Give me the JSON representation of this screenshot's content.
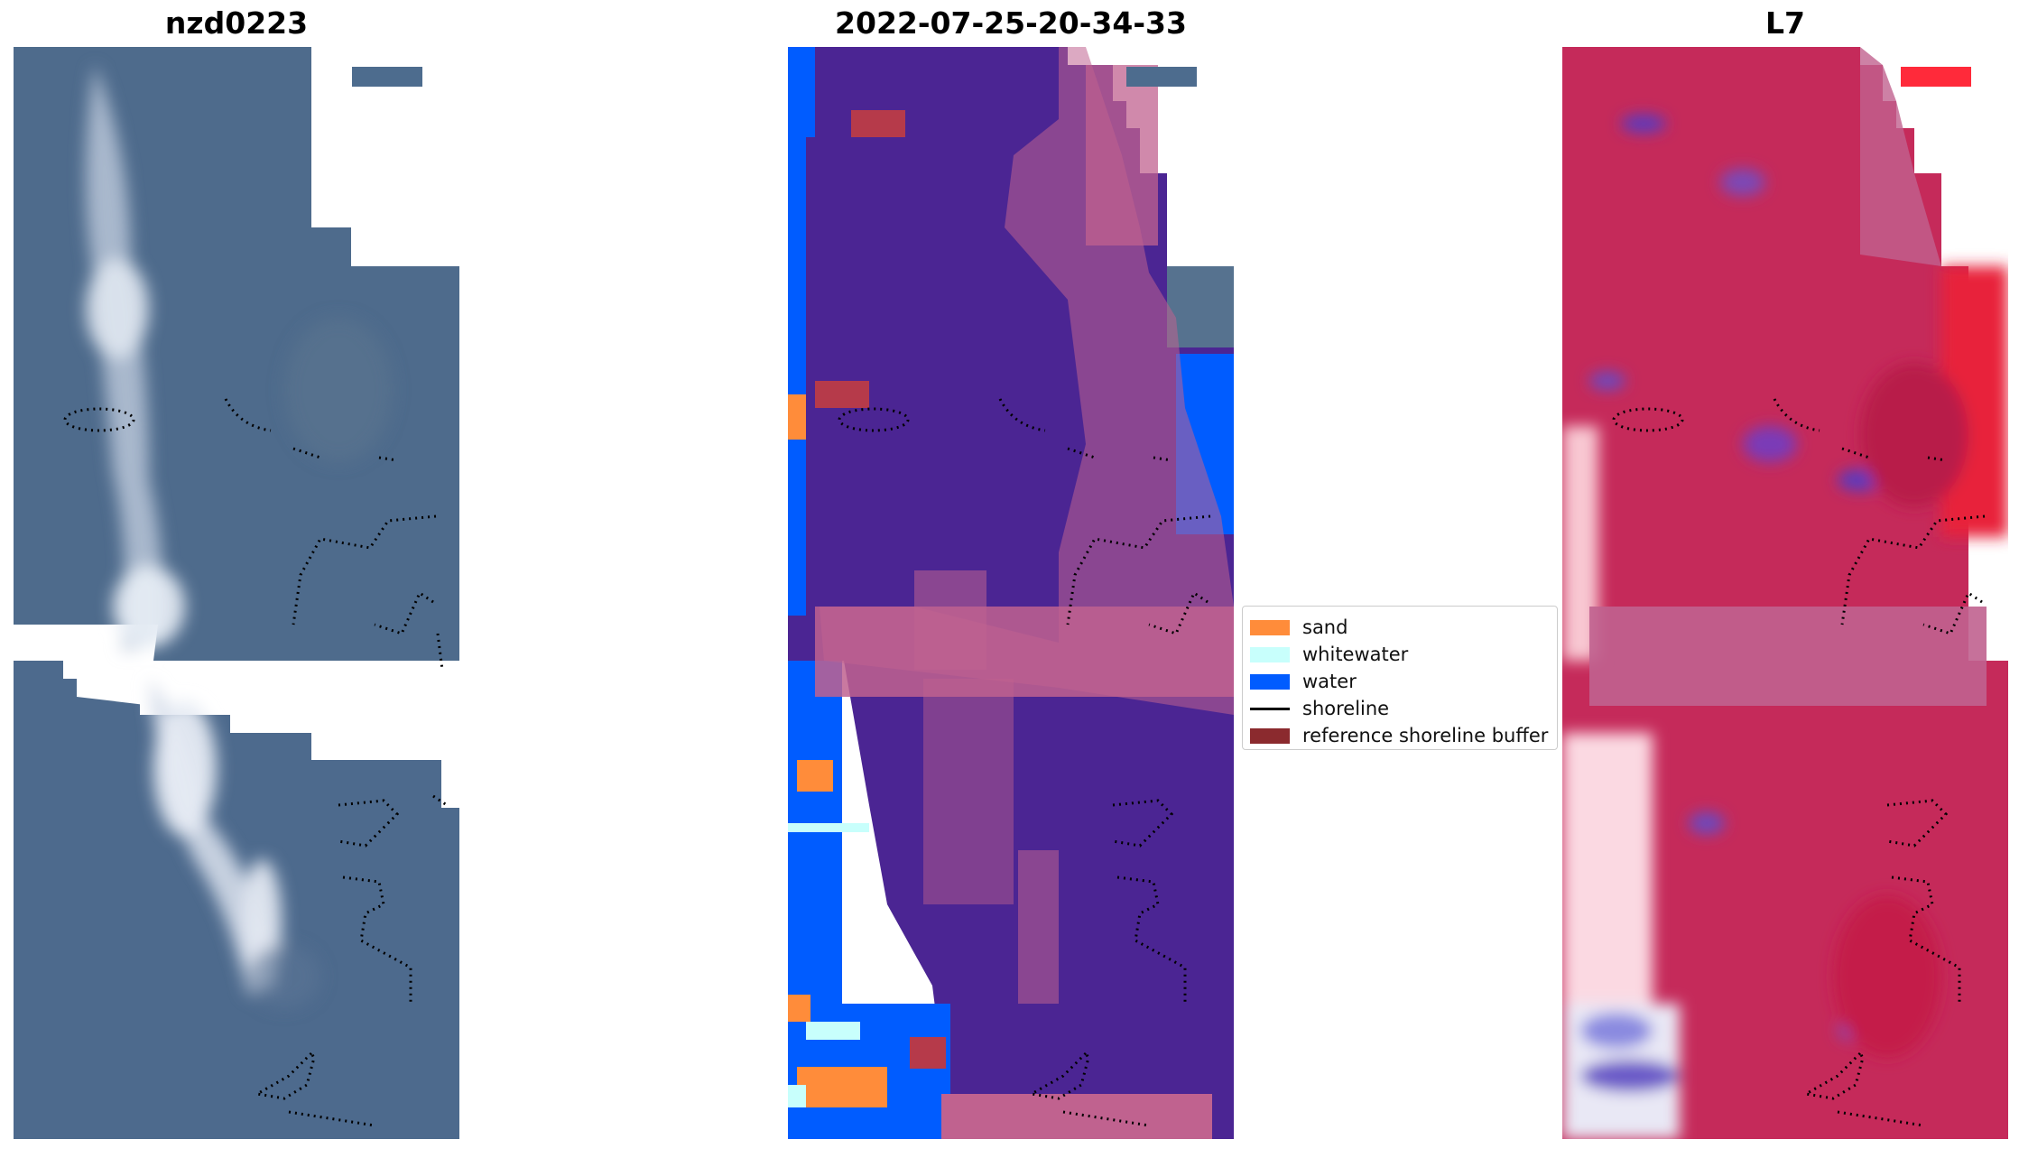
{
  "panels": [
    {
      "title": "nzd0223"
    },
    {
      "title": "2022-07-25-20-34-33"
    },
    {
      "title": "L7"
    }
  ],
  "legend": {
    "items": [
      {
        "label": "sand",
        "color": "#ff8c3a"
      },
      {
        "label": "whitewater",
        "color": "#c8fffc"
      },
      {
        "label": "water",
        "color": "#005cff"
      },
      {
        "label": "shoreline",
        "color": "#000000"
      },
      {
        "label": "reference shoreline buffer",
        "color": "#8b2a2e"
      }
    ]
  },
  "colors": {
    "rgb_base": "#4d6a8e",
    "classification_base": "#4b2593",
    "buffer_overlay": "#c0628f",
    "index_base": "#c52a5a",
    "index_high": "#ff2a3a",
    "index_low": "#5a3ac0"
  }
}
